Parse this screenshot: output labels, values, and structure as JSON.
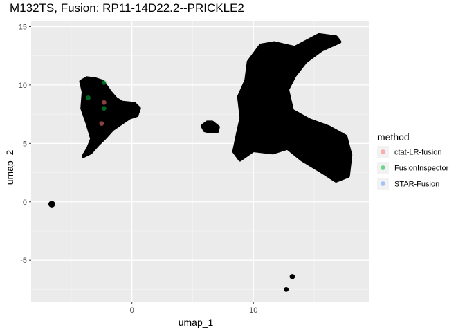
{
  "chart_data": {
    "type": "scatter",
    "title": "M132TS, Fusion:  RP11-14D22.2--PRICKLE2",
    "xlabel": "umap_1",
    "ylabel": "umap_2",
    "xlim": [
      -8.3,
      19.5
    ],
    "ylim": [
      -8.6,
      15.5
    ],
    "x_ticks": [
      0,
      10
    ],
    "x_tick_labels": [
      "0",
      "10"
    ],
    "y_ticks": [
      -5,
      0,
      5,
      10,
      15
    ],
    "y_tick_labels": [
      "-5",
      "0",
      "5",
      "10",
      "15"
    ],
    "grid": true,
    "legend": {
      "title": "method",
      "position": "right",
      "entries": [
        {
          "label": "ctat-LR-fusion",
          "color": "#F8766D"
        },
        {
          "label": "FusionInspector",
          "color": "#00BA38"
        },
        {
          "label": "STAR-Fusion",
          "color": "#619CFF"
        }
      ]
    },
    "background_cells": {
      "color": "#000000",
      "clusters": [
        {
          "polygon": [
            [
              -4.0,
              3.9
            ],
            [
              -3.6,
              4.6
            ],
            [
              -3.3,
              5.4
            ],
            [
              -3.7,
              6.8
            ],
            [
              -4.1,
              8.0
            ],
            [
              -4.0,
              9.4
            ],
            [
              -4.2,
              10.3
            ],
            [
              -3.7,
              10.6
            ],
            [
              -3.0,
              10.5
            ],
            [
              -2.4,
              10.3
            ],
            [
              -1.8,
              9.4
            ],
            [
              -1.3,
              8.8
            ],
            [
              -0.8,
              8.5
            ],
            [
              0.2,
              8.4
            ],
            [
              0.6,
              8.0
            ],
            [
              0.4,
              7.4
            ],
            [
              -0.2,
              7.2
            ],
            [
              -0.9,
              6.7
            ],
            [
              -1.6,
              6.2
            ],
            [
              -2.3,
              5.4
            ],
            [
              -2.8,
              4.9
            ],
            [
              -3.4,
              4.2
            ]
          ]
        },
        {
          "polygon": [
            [
              8.4,
              4.3
            ],
            [
              8.9,
              3.6
            ],
            [
              10.0,
              4.4
            ],
            [
              11.6,
              4.2
            ],
            [
              12.8,
              4.6
            ],
            [
              14.0,
              3.6
            ],
            [
              15.6,
              2.6
            ],
            [
              16.8,
              1.8
            ],
            [
              17.8,
              2.2
            ],
            [
              18.0,
              4.0
            ],
            [
              17.6,
              5.6
            ],
            [
              16.2,
              6.4
            ],
            [
              14.6,
              7.0
            ],
            [
              13.2,
              7.8
            ],
            [
              12.8,
              9.6
            ],
            [
              13.4,
              10.8
            ],
            [
              14.3,
              12.0
            ],
            [
              15.6,
              13.0
            ],
            [
              17.1,
              13.7
            ],
            [
              16.8,
              14.1
            ],
            [
              15.4,
              14.3
            ],
            [
              13.4,
              13.2
            ],
            [
              11.7,
              13.6
            ],
            [
              10.6,
              13.4
            ],
            [
              9.6,
              12.0
            ],
            [
              9.4,
              10.4
            ],
            [
              8.8,
              9.0
            ],
            [
              9.0,
              7.2
            ],
            [
              8.7,
              5.8
            ]
          ]
        },
        {
          "polygon": [
            [
              5.8,
              6.5
            ],
            [
              6.2,
              6.8
            ],
            [
              6.6,
              6.8
            ],
            [
              7.1,
              6.4
            ],
            [
              7.0,
              6.0
            ],
            [
              6.4,
              6.0
            ],
            [
              6.0,
              6.1
            ]
          ]
        }
      ],
      "blobs": [
        {
          "x": -6.6,
          "y": -0.2,
          "r": 0.28
        },
        {
          "x": 13.2,
          "y": -6.4,
          "r": 0.22
        },
        {
          "x": 12.7,
          "y": -7.5,
          "r": 0.2
        }
      ]
    },
    "series": [
      {
        "name": "ctat-LR-fusion",
        "color": "#F8766D",
        "points": [
          [
            -2.3,
            8.5
          ],
          [
            -2.5,
            6.7
          ]
        ]
      },
      {
        "name": "FusionInspector",
        "color": "#00BA38",
        "points": [
          [
            -2.3,
            10.2
          ],
          [
            -3.6,
            8.9
          ],
          [
            -2.3,
            8.0
          ]
        ]
      },
      {
        "name": "STAR-Fusion",
        "color": "#619CFF",
        "points": []
      }
    ]
  }
}
